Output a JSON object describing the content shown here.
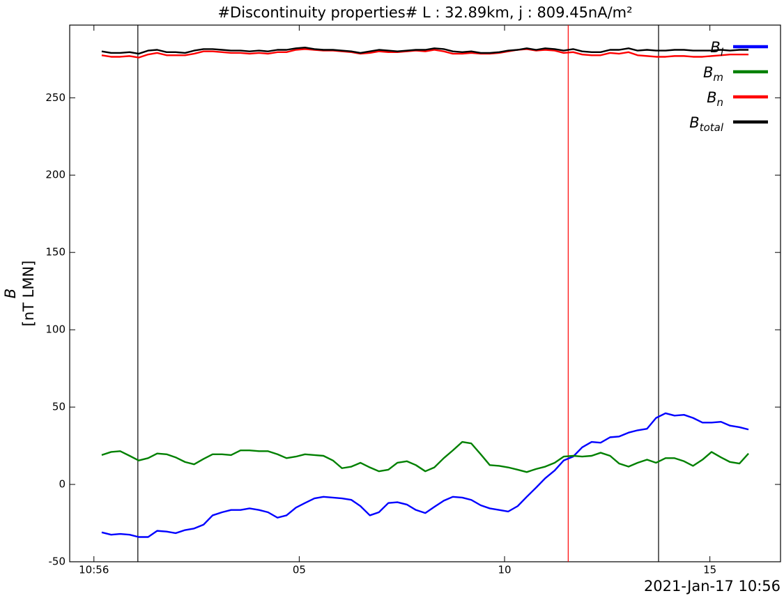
{
  "chart_data": {
    "type": "line",
    "title": "#Discontinuity properties# L : 32.89km, j : 809.45nA/m²",
    "ylabel": [
      "B",
      "[nT LMN]"
    ],
    "x_offset_label": "2021-Jan-17 10:56",
    "xlim": [
      -0.59,
      16.72
    ],
    "xticks": [
      {
        "value": 0,
        "label": "10:56"
      },
      {
        "value": 5,
        "label": "05"
      },
      10,
      15
    ],
    "ylim": [
      -50,
      297
    ],
    "yticks": [
      -50,
      0,
      50,
      100,
      150,
      200,
      250
    ],
    "legend": "upper right",
    "vlines": [
      {
        "x": 1.07,
        "color": "#000000"
      },
      {
        "x": 11.55,
        "color": "#ff0000"
      },
      {
        "x": 13.75,
        "color": "#000000"
      }
    ],
    "x": [
      0.19,
      0.42,
      0.64,
      0.87,
      1.09,
      1.32,
      1.54,
      1.77,
      1.99,
      2.22,
      2.44,
      2.67,
      2.89,
      3.12,
      3.34,
      3.57,
      3.79,
      4.02,
      4.24,
      4.47,
      4.69,
      4.92,
      5.14,
      5.37,
      5.59,
      5.82,
      6.04,
      6.27,
      6.49,
      6.72,
      6.94,
      7.17,
      7.39,
      7.62,
      7.84,
      8.07,
      8.29,
      8.52,
      8.74,
      8.97,
      9.19,
      9.42,
      9.64,
      9.87,
      10.09,
      10.32,
      10.54,
      10.77,
      10.99,
      11.22,
      11.44,
      11.67,
      11.89,
      12.12,
      12.34,
      12.57,
      12.79,
      13.02,
      13.24,
      13.47,
      13.69,
      13.92,
      14.14,
      14.37,
      14.59,
      14.82,
      15.04,
      15.27,
      15.49,
      15.72,
      15.94
    ],
    "series": [
      {
        "name": "Bl",
        "color": "#0000ff",
        "values": [
          -31,
          -32.5,
          -32,
          -32.5,
          -34,
          -34,
          -30,
          -30.5,
          -31.5,
          -29.5,
          -28.5,
          -26,
          -20,
          -18,
          -16.5,
          -16.5,
          -15.5,
          -16.5,
          -18,
          -21.5,
          -20,
          -15,
          -12,
          -9,
          -8,
          -8.5,
          -9,
          -10,
          -14,
          -20,
          -18,
          -12,
          -11.5,
          -13,
          -16.5,
          -18.5,
          -14.5,
          -10.5,
          -8,
          -8.5,
          -10,
          -13.5,
          -15.5,
          -16.5,
          -17.5,
          -14,
          -8,
          -2,
          4,
          9,
          15.5,
          18,
          24,
          27.5,
          27,
          30.5,
          31,
          33.5,
          35,
          36,
          43,
          46,
          44.5,
          45,
          43,
          40,
          40,
          40.5,
          38,
          37,
          35.5
        ]
      },
      {
        "name": "Bm",
        "color": "#008000",
        "values": [
          19,
          21,
          21.5,
          18.5,
          15.5,
          17,
          20,
          19.5,
          17.5,
          14.5,
          13,
          16.5,
          19.5,
          19.5,
          19,
          22,
          22,
          21.5,
          21.5,
          19.5,
          17,
          18,
          19.5,
          19,
          18.5,
          15.5,
          10.5,
          11.5,
          14,
          11,
          8.5,
          9.5,
          14,
          15,
          12.5,
          8.5,
          11,
          17,
          22,
          27.5,
          26.5,
          19.5,
          12.5,
          12,
          11,
          9.5,
          8,
          10,
          11.5,
          14,
          18,
          18.5,
          18,
          18.5,
          20.5,
          18.5,
          13.5,
          11.5,
          14,
          16,
          14,
          17,
          17,
          15,
          12,
          16,
          21,
          17.5,
          14.5,
          13.5,
          20
        ]
      },
      {
        "name": "Bn",
        "color": "#ff0000",
        "values": [
          277.5,
          276.5,
          276.5,
          277,
          276,
          278,
          279,
          277.5,
          277.5,
          277.5,
          278.5,
          280,
          280,
          279.5,
          279,
          279,
          278.5,
          279,
          278.5,
          279.5,
          279.5,
          281,
          281.5,
          281,
          280.5,
          280.5,
          280,
          279.5,
          278.5,
          279,
          280,
          279.5,
          279.5,
          280,
          280.5,
          280,
          281,
          280,
          278.5,
          278.5,
          279,
          278.5,
          278.5,
          279,
          280,
          281,
          281.5,
          280.5,
          281,
          280.5,
          279,
          279.5,
          278,
          277.5,
          277.5,
          279,
          278.5,
          279.5,
          277.5,
          277,
          276.5,
          276.5,
          277,
          277,
          276.5,
          276.5,
          277,
          277.5,
          278,
          278,
          278
        ]
      },
      {
        "name": "Btotal",
        "color": "#000000",
        "values": [
          280,
          279,
          279,
          279.5,
          278.5,
          280.5,
          281,
          279.5,
          279.5,
          279,
          280.5,
          281.5,
          281.5,
          281,
          280.5,
          280.5,
          280,
          280.5,
          280,
          281,
          281,
          282,
          282.5,
          281.5,
          281,
          281,
          280.5,
          280,
          279,
          280,
          281,
          280.5,
          280,
          280.5,
          281,
          281,
          282,
          281.5,
          280,
          279.5,
          280,
          279,
          279,
          279.5,
          280.5,
          281,
          282,
          281,
          282,
          281.5,
          280.5,
          281.5,
          280,
          279.5,
          279.5,
          281,
          281,
          282,
          280.5,
          281,
          280.5,
          280.5,
          281,
          281,
          280.5,
          280.5,
          280.5,
          281,
          280.5,
          281,
          281
        ]
      }
    ]
  }
}
